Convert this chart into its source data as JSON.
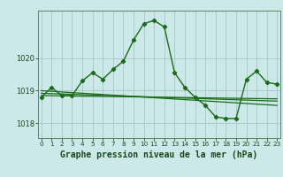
{
  "title": "Graphe pression niveau de la mer (hPa)",
  "ylabel_ticks": [
    1018,
    1019,
    1020
  ],
  "ylim": [
    1017.55,
    1021.45
  ],
  "xlim": [
    -0.3,
    23.3
  ],
  "bg_color": "#cce8e8",
  "grid_color": "#aacccc",
  "line_color": "#1a6b1a",
  "title_fontsize": 7.5,
  "series": [
    {
      "x": [
        0,
        1,
        2,
        3,
        4,
        5,
        6,
        7,
        8,
        9,
        10,
        11,
        12,
        13,
        14,
        15,
        16,
        17,
        18,
        19,
        20,
        21,
        22,
        23
      ],
      "y": [
        1018.8,
        1019.1,
        1018.85,
        1018.85,
        1019.3,
        1019.55,
        1019.35,
        1019.65,
        1019.9,
        1020.55,
        1021.05,
        1021.15,
        1020.95,
        1019.55,
        1019.1,
        1018.8,
        1018.55,
        1018.2,
        1018.15,
        1018.15,
        1019.35,
        1019.6,
        1019.25,
        1019.2
      ],
      "color": "#1a6b1a",
      "lw": 1.0,
      "marker": "D",
      "ms": 2.2,
      "zorder": 5
    },
    {
      "x": [
        0,
        23
      ],
      "y": [
        1018.85,
        1018.75
      ],
      "color": "#1a6b1a",
      "lw": 0.9,
      "marker": null,
      "ms": 0,
      "zorder": 3
    },
    {
      "x": [
        0,
        23
      ],
      "y": [
        1018.92,
        1018.68
      ],
      "color": "#1a6b1a",
      "lw": 0.9,
      "marker": null,
      "ms": 0,
      "zorder": 3
    },
    {
      "x": [
        0,
        23
      ],
      "y": [
        1019.0,
        1018.55
      ],
      "color": "#1a6b1a",
      "lw": 0.9,
      "marker": null,
      "ms": 0,
      "zorder": 3
    }
  ]
}
